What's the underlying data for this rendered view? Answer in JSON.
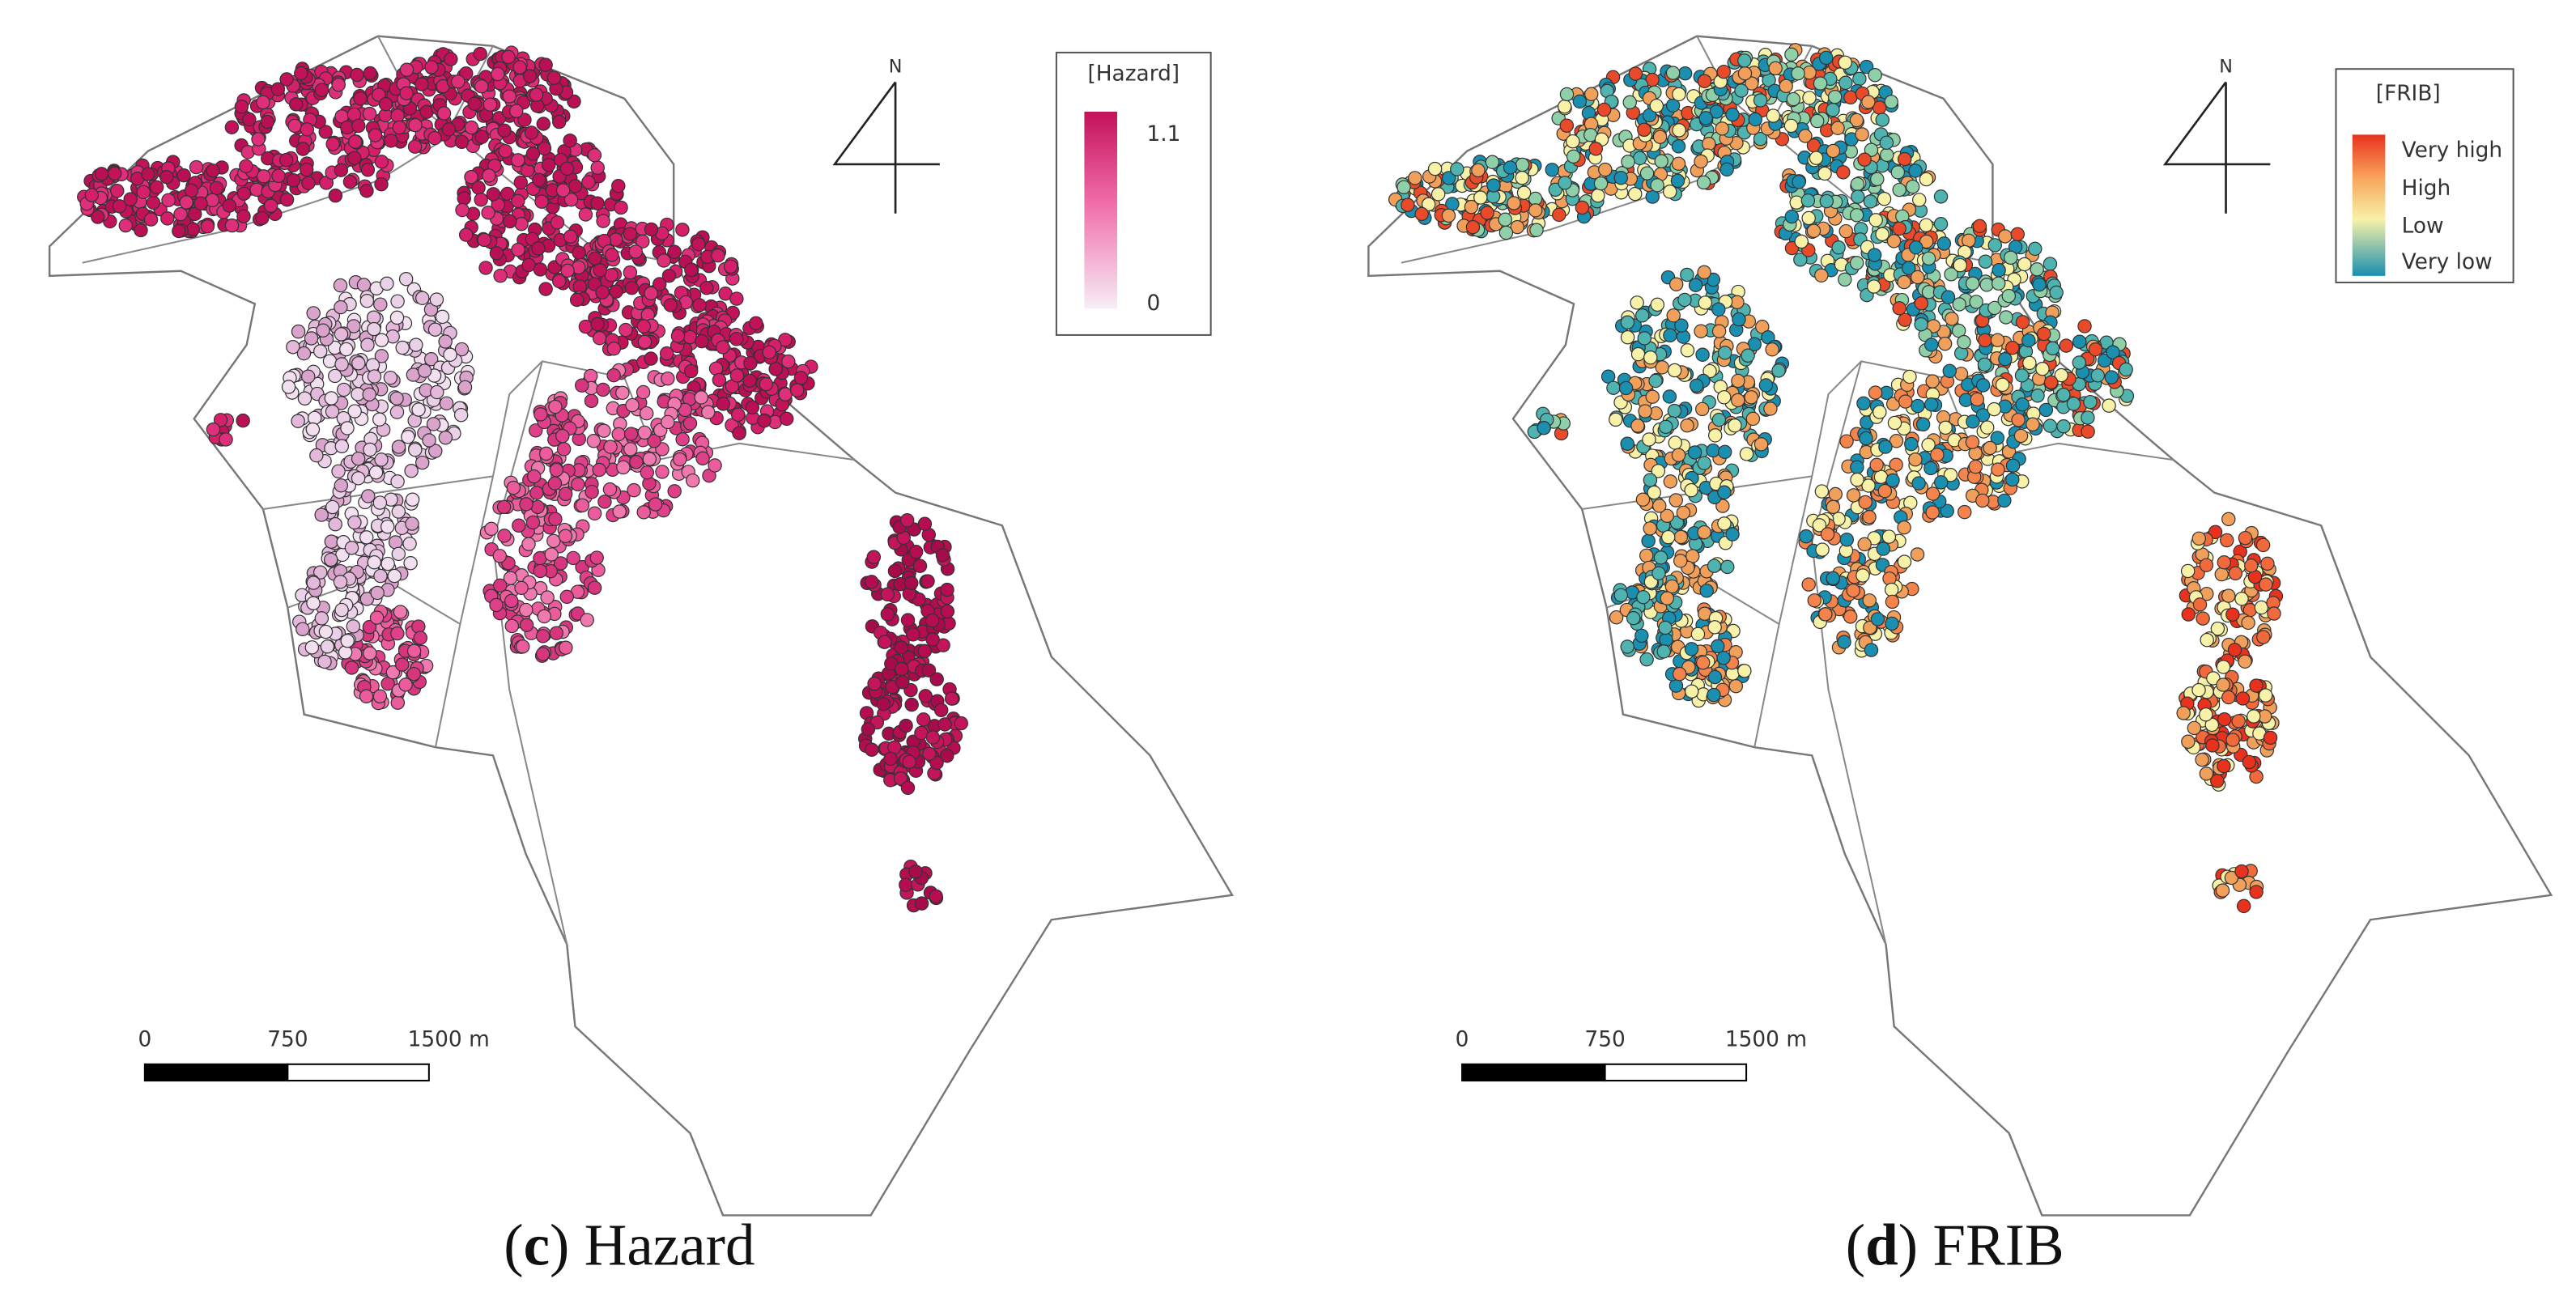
{
  "panels": [
    {
      "legend": {
        "title": "[Hazard]",
        "labels": [
          "1.1",
          "0"
        ]
      },
      "north": "N",
      "scale_bar": [
        "0",
        "750",
        "1500 m"
      ],
      "caption": [
        "(",
        "c",
        ") Hazard"
      ]
    },
    {
      "legend": {
        "title": "[FRIB]",
        "labels": [
          "Very high",
          "High",
          "Low",
          "Very low"
        ]
      },
      "north": "N",
      "scale_bar": [
        "0",
        "750",
        "1500 m"
      ],
      "caption": [
        "(",
        "d",
        ") FRIB"
      ]
    }
  ]
}
